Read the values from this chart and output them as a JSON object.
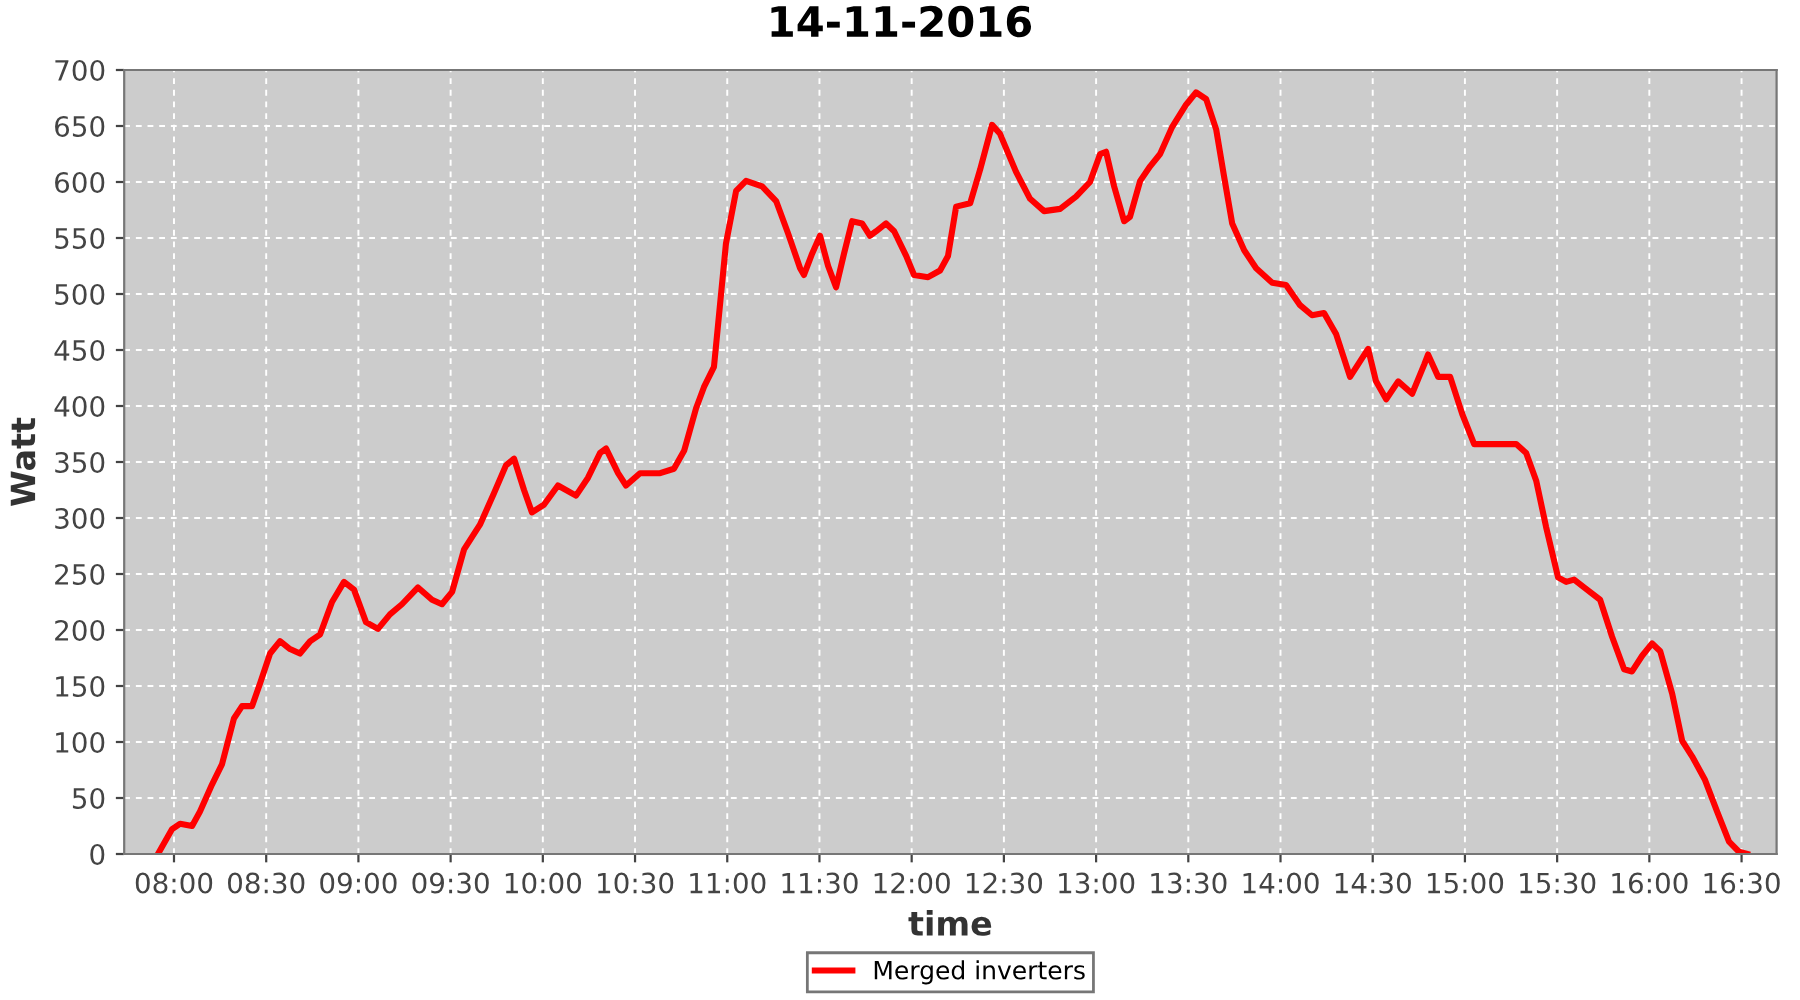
{
  "chart_data": {
    "type": "line",
    "title": "14-11-2016",
    "xlabel": "time",
    "ylabel": "Watt",
    "x": [
      7.913,
      7.989,
      8.033,
      8.098,
      8.141,
      8.206,
      8.26,
      8.325,
      8.369,
      8.423,
      8.466,
      8.521,
      8.575,
      8.629,
      8.683,
      8.738,
      8.792,
      8.857,
      8.922,
      8.976,
      9.041,
      9.106,
      9.171,
      9.236,
      9.323,
      9.399,
      9.453,
      9.508,
      9.573,
      9.659,
      9.735,
      9.8,
      9.844,
      9.898,
      9.941,
      10.007,
      10.082,
      10.18,
      10.245,
      10.31,
      10.343,
      10.408,
      10.451,
      10.527,
      10.636,
      10.711,
      10.766,
      10.831,
      10.874,
      10.928,
      10.993,
      11.048,
      11.102,
      11.189,
      11.265,
      11.33,
      11.395,
      11.416,
      11.46,
      11.503,
      11.547,
      11.59,
      11.633,
      11.677,
      11.731,
      11.774,
      11.807,
      11.861,
      11.905,
      11.97,
      12.013,
      12.089,
      12.154,
      12.197,
      12.241,
      12.317,
      12.371,
      12.436,
      12.479,
      12.566,
      12.642,
      12.718,
      12.805,
      12.891,
      12.967,
      13.022,
      13.054,
      13.098,
      13.152,
      13.184,
      13.239,
      13.293,
      13.347,
      13.412,
      13.488,
      13.542,
      13.597,
      13.651,
      13.694,
      13.738,
      13.803,
      13.868,
      13.955,
      14.03,
      14.106,
      14.171,
      14.236,
      14.302,
      14.377,
      14.432,
      14.475,
      14.518,
      14.573,
      14.638,
      14.714,
      14.779,
      14.8,
      14.855,
      14.92,
      14.985,
      15.05,
      15.169,
      15.278,
      15.332,
      15.387,
      15.44,
      15.505,
      15.549,
      15.592,
      15.646,
      15.733,
      15.798,
      15.863,
      15.906,
      15.961,
      16.015,
      16.059,
      16.124,
      16.178,
      16.236,
      16.302,
      16.367,
      16.432,
      16.486,
      16.53
    ],
    "series": [
      {
        "name": "Merged inverters",
        "color": "#ff0000",
        "values": [
          0,
          22,
          27,
          25,
          38,
          62,
          80,
          121,
          132,
          132,
          152,
          179,
          190,
          183,
          179,
          190,
          196,
          225,
          243,
          236,
          207,
          201,
          214,
          223,
          238,
          227,
          223,
          234,
          272,
          294,
          322,
          347,
          353,
          325,
          305,
          312,
          329,
          320,
          336,
          358,
          362,
          340,
          329,
          340,
          340,
          344,
          360,
          398,
          417,
          435,
          545,
          592,
          601,
          596,
          583,
          554,
          523,
          517,
          536,
          552,
          525,
          506,
          536,
          565,
          563,
          552,
          556,
          563,
          556,
          534,
          517,
          515,
          521,
          534,
          578,
          581,
          611,
          651,
          643,
          609,
          585,
          574,
          576,
          587,
          600,
          625,
          627,
          596,
          565,
          569,
          601,
          614,
          625,
          649,
          669,
          680,
          674,
          647,
          605,
          563,
          539,
          523,
          510,
          508,
          490,
          481,
          483,
          464,
          426,
          440,
          451,
          422,
          406,
          422,
          411,
          437,
          446,
          426,
          426,
          393,
          366,
          366,
          366,
          358,
          333,
          292,
          247,
          243,
          245,
          238,
          227,
          194,
          165,
          163,
          177,
          188,
          181,
          143,
          101,
          86,
          66,
          38,
          11,
          2,
          0
        ]
      }
    ],
    "xlim": [
      7.73,
      16.69
    ],
    "ylim": [
      0,
      700
    ],
    "xticks": [
      {
        "value": 8,
        "label": "08:00"
      },
      {
        "value": 8.5,
        "label": "08:30"
      },
      {
        "value": 9,
        "label": "09:00"
      },
      {
        "value": 9.5,
        "label": "09:30"
      },
      {
        "value": 10,
        "label": "10:00"
      },
      {
        "value": 10.5,
        "label": "10:30"
      },
      {
        "value": 11,
        "label": "11:00"
      },
      {
        "value": 11.5,
        "label": "11:30"
      },
      {
        "value": 12,
        "label": "12:00"
      },
      {
        "value": 12.5,
        "label": "12:30"
      },
      {
        "value": 13,
        "label": "13:00"
      },
      {
        "value": 13.5,
        "label": "13:30"
      },
      {
        "value": 14,
        "label": "14:00"
      },
      {
        "value": 14.5,
        "label": "14:30"
      },
      {
        "value": 15,
        "label": "15:00"
      },
      {
        "value": 15.5,
        "label": "15:30"
      },
      {
        "value": 16,
        "label": "16:00"
      },
      {
        "value": 16.5,
        "label": "16:30"
      }
    ],
    "yticks": [
      0,
      50,
      100,
      150,
      200,
      250,
      300,
      350,
      400,
      450,
      500,
      550,
      600,
      650,
      700
    ],
    "grid": true,
    "legend": "bottom",
    "marker": "none",
    "line_style": "solid"
  }
}
